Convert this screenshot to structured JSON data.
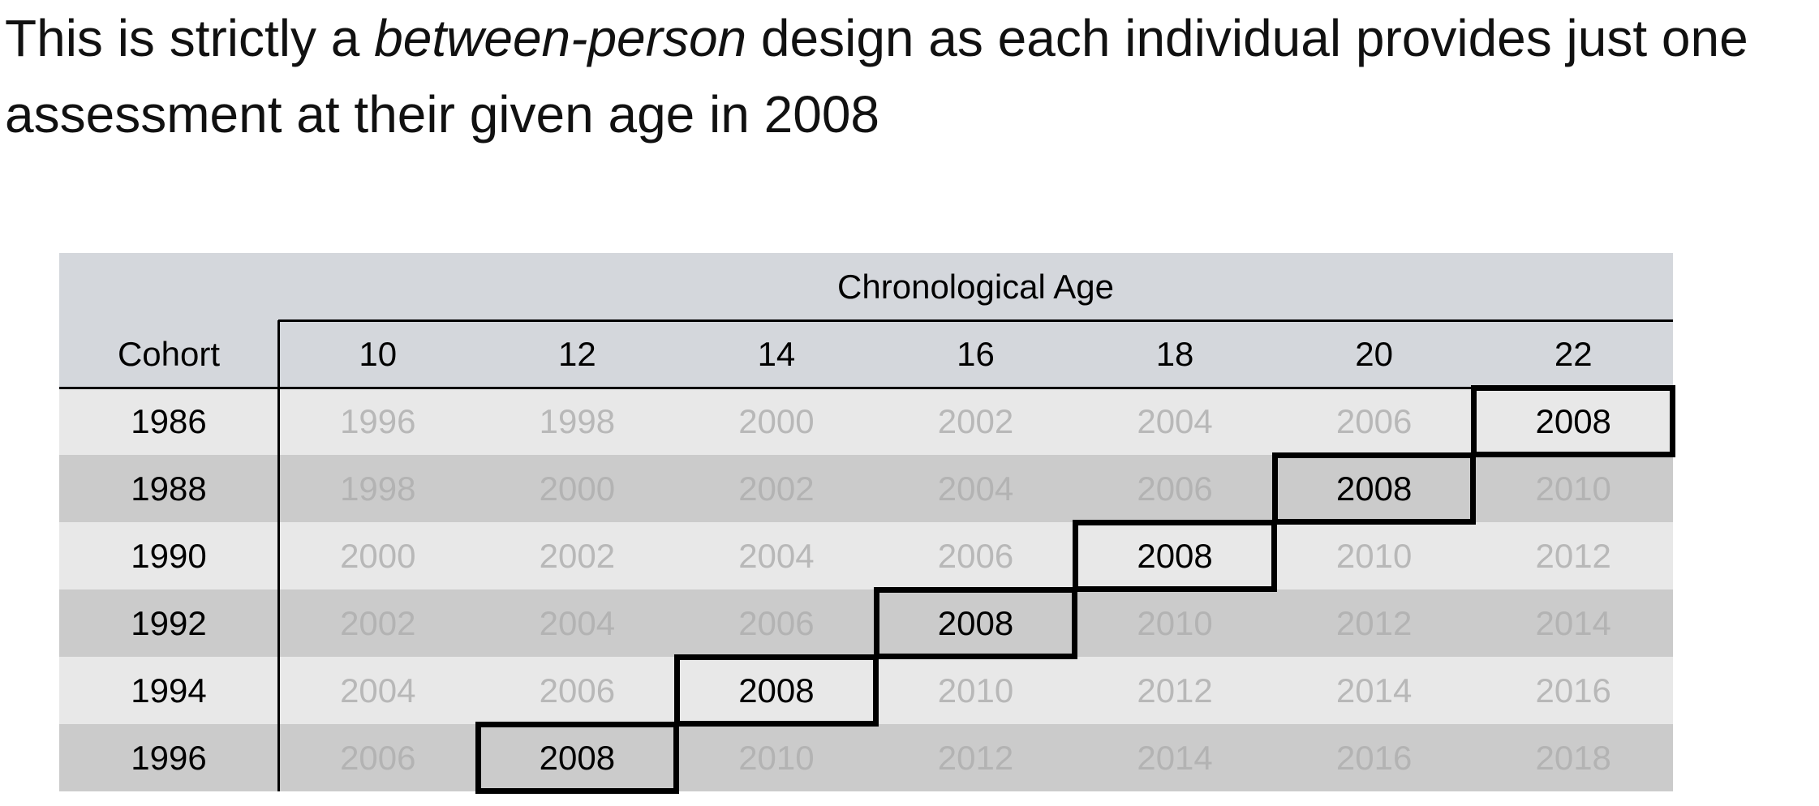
{
  "heading": {
    "before": "This is strictly a",
    "emphasis": "between-person",
    "after": "design as each individual provides just one assessment at their given age in 2008"
  },
  "table": {
    "group_header": "Chronological Age",
    "row_header": "Cohort",
    "columns": [
      "10",
      "12",
      "14",
      "16",
      "18",
      "20",
      "22"
    ],
    "rows": [
      {
        "cohort": "1986",
        "cells": [
          "1996",
          "1998",
          "2000",
          "2002",
          "2004",
          "2006",
          "2008"
        ],
        "highlight": 6
      },
      {
        "cohort": "1988",
        "cells": [
          "1998",
          "2000",
          "2002",
          "2004",
          "2006",
          "2008",
          "2010"
        ],
        "highlight": 5
      },
      {
        "cohort": "1990",
        "cells": [
          "2000",
          "2002",
          "2004",
          "2006",
          "2008",
          "2010",
          "2012"
        ],
        "highlight": 4
      },
      {
        "cohort": "1992",
        "cells": [
          "2002",
          "2004",
          "2006",
          "2008",
          "2010",
          "2012",
          "2014"
        ],
        "highlight": 3
      },
      {
        "cohort": "1994",
        "cells": [
          "2004",
          "2006",
          "2008",
          "2010",
          "2012",
          "2014",
          "2016"
        ],
        "highlight": 2
      },
      {
        "cohort": "1996",
        "cells": [
          "2006",
          "2008",
          "2010",
          "2012",
          "2014",
          "2016",
          "2018"
        ],
        "highlight": 1
      }
    ]
  }
}
